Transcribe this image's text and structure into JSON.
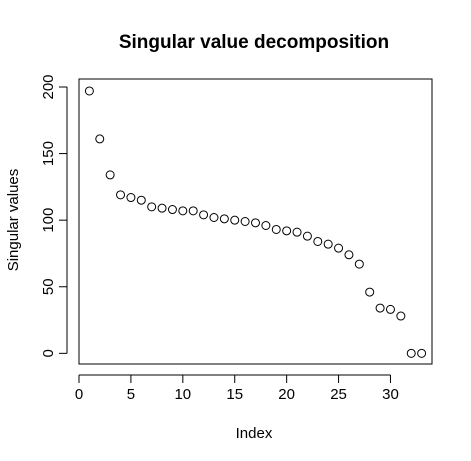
{
  "chart_data": {
    "type": "scatter",
    "title": "Singular value decomposition",
    "xlabel": "Index",
    "ylabel": "Singular values",
    "xlim": [
      0,
      34
    ],
    "ylim": [
      -8,
      206
    ],
    "xticks": [
      0,
      5,
      10,
      15,
      20,
      25,
      30
    ],
    "yticks": [
      0,
      50,
      100,
      150,
      200
    ],
    "grid": false,
    "marker": "open-circle",
    "series": [
      {
        "x": [
          1,
          2,
          3,
          4,
          5,
          6,
          7,
          8,
          9,
          10,
          11,
          12,
          13,
          14,
          15,
          16,
          17,
          18,
          19,
          20,
          21,
          22,
          23,
          24,
          25,
          26,
          27,
          28,
          29,
          30,
          31,
          32,
          33
        ],
        "y": [
          197,
          161,
          134,
          119,
          117,
          115,
          110,
          109,
          108,
          107,
          107,
          104,
          102,
          101,
          100,
          99,
          98,
          96,
          93,
          92,
          91,
          88,
          84,
          82,
          79,
          74,
          67,
          46,
          34,
          33,
          28,
          0,
          0
        ]
      }
    ]
  }
}
